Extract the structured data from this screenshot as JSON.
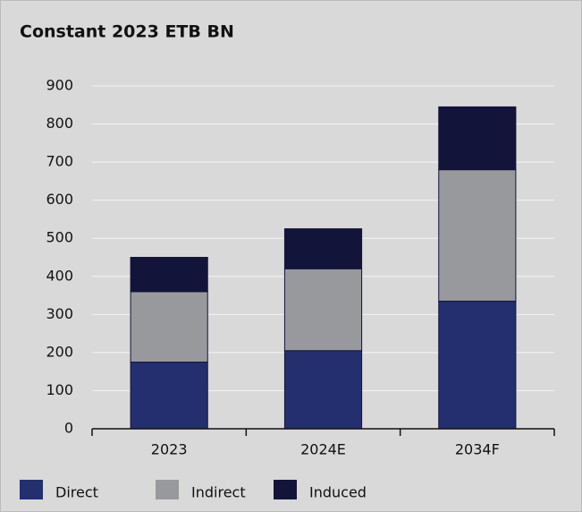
{
  "chart_data": {
    "type": "stacked_bar",
    "title": "Constant 2023 ETB BN",
    "categories": [
      "2023",
      "2024E",
      "2034F"
    ],
    "series": [
      {
        "name": "Direct",
        "color": "#232f6e",
        "values": [
          175,
          205,
          335
        ]
      },
      {
        "name": "Indirect",
        "color": "#98999c",
        "values": [
          185,
          215,
          345
        ]
      },
      {
        "name": "Induced",
        "color": "#12143a",
        "values": [
          90,
          105,
          165
        ]
      }
    ],
    "ylim": [
      0,
      900
    ],
    "yticks": [
      0,
      100,
      200,
      300,
      400,
      500,
      600,
      700,
      800,
      900
    ],
    "grid": true
  }
}
